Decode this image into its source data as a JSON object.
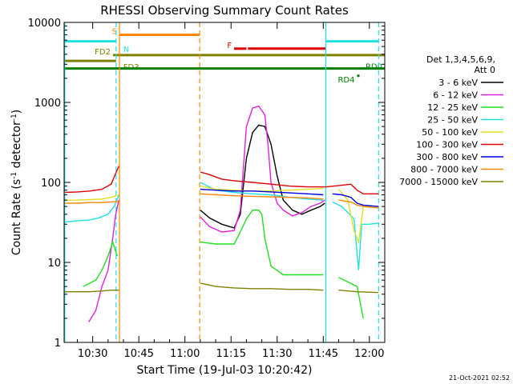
{
  "chart_data": {
    "type": "line",
    "title": "RHESSI Observing Summary Count Rates",
    "xlabel": "Start Time (19-Jul-03 10:20:42)",
    "ylabel_main": "Count Rate (s",
    "ylabel_sup": "-1",
    "ylabel_mid": " detector",
    "ylabel_sup2": "-1",
    "ylabel_end": ")",
    "timestamp": "21-Oct-2021 02:52",
    "x_range_min": [
      620.7,
      725
    ],
    "y_range": [
      1,
      10000
    ],
    "y_scale": "log",
    "x_ticks": [
      {
        "label": "10:30",
        "value": 630
      },
      {
        "label": "10:45",
        "value": 645
      },
      {
        "label": "11:00",
        "value": 660
      },
      {
        "label": "11:15",
        "value": 675
      },
      {
        "label": "11:30",
        "value": 690
      },
      {
        "label": "11:45",
        "value": 705
      },
      {
        "label": "12:00",
        "value": 720
      }
    ],
    "y_ticks": [
      {
        "label": "1",
        "value": 1
      },
      {
        "label": "10",
        "value": 10
      },
      {
        "label": "100",
        "value": 100
      },
      {
        "label": "1000",
        "value": 1000
      },
      {
        "label": "10000",
        "value": 10000
      }
    ],
    "legend": {
      "position": "right",
      "header": [
        "Det 1,3,4,5,6,9,",
        "Att 0"
      ],
      "entries": [
        {
          "label": "3 - 6 keV",
          "color": "#000000"
        },
        {
          "label": "6 - 12 keV",
          "color": "#e020e0"
        },
        {
          "label": "12 - 25 keV",
          "color": "#20e020"
        },
        {
          "label": "25 - 50 keV",
          "color": "#20e0e0"
        },
        {
          "label": "50 - 100 keV",
          "color": "#e0e020"
        },
        {
          "label": "100 - 300 keV",
          "color": "#e00000"
        },
        {
          "label": "300 - 800 keV",
          "color": "#0000e0"
        },
        {
          "label": "800 - 7000 keV",
          "color": "#ff8800"
        },
        {
          "label": "7000 - 15000 keV",
          "color": "#808000"
        }
      ]
    },
    "gap_minutes": [
      [
        638.8,
        664.8
      ],
      [
        705.8,
        706.5
      ]
    ],
    "series": [
      {
        "name": "3 - 6 keV",
        "color": "#000000",
        "points": [
          [
            665,
            45
          ],
          [
            668,
            36
          ],
          [
            672,
            30
          ],
          [
            676,
            27
          ],
          [
            678,
            40
          ],
          [
            680,
            200
          ],
          [
            682,
            420
          ],
          [
            684,
            520
          ],
          [
            686,
            500
          ],
          [
            688,
            300
          ],
          [
            690,
            120
          ],
          [
            692,
            60
          ],
          [
            695,
            45
          ],
          [
            698,
            40
          ],
          [
            701,
            45
          ],
          [
            704,
            50
          ],
          [
            705.5,
            55
          ]
        ]
      },
      {
        "name": "6 - 12 keV",
        "color": "#e020e0",
        "points": [
          [
            628.7,
            1.8
          ],
          [
            631,
            2.5
          ],
          [
            633,
            5
          ],
          [
            635,
            8
          ],
          [
            636.5,
            20
          ],
          [
            637.5,
            40
          ],
          [
            638.5,
            60
          ],
          [
            665,
            37
          ],
          [
            668,
            28
          ],
          [
            672,
            24
          ],
          [
            676,
            25
          ],
          [
            678,
            45
          ],
          [
            680,
            500
          ],
          [
            682,
            850
          ],
          [
            684,
            900
          ],
          [
            686,
            700
          ],
          [
            687,
            300
          ],
          [
            688,
            100
          ],
          [
            690,
            55
          ],
          [
            692,
            45
          ],
          [
            695,
            38
          ],
          [
            698,
            42
          ],
          [
            701,
            50
          ],
          [
            704,
            55
          ],
          [
            705.5,
            60
          ]
        ]
      },
      {
        "name": "12 - 25 keV",
        "color": "#20e020",
        "points": [
          [
            627,
            5
          ],
          [
            629,
            5.5
          ],
          [
            631,
            6
          ],
          [
            633,
            8
          ],
          [
            635,
            12
          ],
          [
            636.5,
            18
          ],
          [
            638,
            12
          ],
          [
            665,
            18
          ],
          [
            670,
            17
          ],
          [
            676,
            17
          ],
          [
            678,
            24
          ],
          [
            680,
            35
          ],
          [
            682,
            45
          ],
          [
            684,
            45
          ],
          [
            685,
            40
          ],
          [
            686,
            20
          ],
          [
            688,
            9
          ],
          [
            692,
            7
          ],
          [
            700,
            7
          ],
          [
            705,
            7
          ],
          [
            710,
            6.5
          ],
          [
            716,
            5
          ],
          [
            718,
            2
          ]
        ]
      },
      {
        "name": "25 - 50 keV",
        "color": "#20e0e0",
        "points": [
          [
            621,
            32
          ],
          [
            625,
            33
          ],
          [
            629,
            34
          ],
          [
            632,
            36
          ],
          [
            635,
            40
          ],
          [
            637,
            50
          ],
          [
            638.5,
            70
          ],
          [
            665,
            100
          ],
          [
            670,
            80
          ],
          [
            676,
            75
          ],
          [
            682,
            72
          ],
          [
            688,
            70
          ],
          [
            694,
            65
          ],
          [
            700,
            62
          ],
          [
            705,
            60
          ],
          [
            708,
            57
          ],
          [
            711,
            50
          ],
          [
            713,
            42
          ],
          [
            715,
            35
          ],
          [
            716.5,
            8
          ],
          [
            717.5,
            30
          ],
          [
            720,
            30
          ],
          [
            723,
            31
          ]
        ]
      },
      {
        "name": "50 - 100 keV",
        "color": "#e0e020",
        "points": [
          [
            621,
            60
          ],
          [
            625,
            60
          ],
          [
            629,
            61
          ],
          [
            633,
            62
          ],
          [
            636,
            65
          ],
          [
            638.5,
            70
          ],
          [
            665,
            90
          ],
          [
            670,
            82
          ],
          [
            676,
            80
          ],
          [
            682,
            78
          ],
          [
            688,
            78
          ],
          [
            694,
            80
          ],
          [
            700,
            82
          ],
          [
            705,
            84
          ],
          [
            710,
            82
          ],
          [
            713,
            60
          ],
          [
            715,
            25
          ],
          [
            716.5,
            18
          ],
          [
            718,
            50
          ],
          [
            723,
            50
          ]
        ]
      },
      {
        "name": "100 - 300 keV",
        "color": "#e00000",
        "points": [
          [
            621,
            75
          ],
          [
            625,
            76
          ],
          [
            629,
            78
          ],
          [
            633,
            82
          ],
          [
            636,
            95
          ],
          [
            637.5,
            130
          ],
          [
            638.5,
            160
          ],
          [
            665,
            135
          ],
          [
            668,
            125
          ],
          [
            672,
            110
          ],
          [
            676,
            105
          ],
          [
            682,
            100
          ],
          [
            688,
            95
          ],
          [
            694,
            90
          ],
          [
            700,
            88
          ],
          [
            706,
            88
          ],
          [
            711,
            92
          ],
          [
            714,
            95
          ],
          [
            716,
            80
          ],
          [
            718,
            72
          ],
          [
            723,
            72
          ]
        ]
      },
      {
        "name": "300 - 800 keV",
        "color": "#0000e0",
        "points": [
          [
            665,
            82
          ],
          [
            670,
            80
          ],
          [
            676,
            78
          ],
          [
            682,
            78
          ],
          [
            688,
            76
          ],
          [
            694,
            74
          ],
          [
            700,
            72
          ],
          [
            705,
            70
          ],
          [
            708,
            72
          ],
          [
            711,
            70
          ],
          [
            714,
            65
          ],
          [
            716,
            55
          ],
          [
            718,
            52
          ],
          [
            723,
            50
          ]
        ]
      },
      {
        "name": "800 - 7000 keV",
        "color": "#ff8800",
        "points": [
          [
            621,
            55
          ],
          [
            625,
            55
          ],
          [
            629,
            56
          ],
          [
            633,
            56
          ],
          [
            636,
            57
          ],
          [
            638.5,
            58
          ],
          [
            665,
            72
          ],
          [
            670,
            70
          ],
          [
            676,
            68
          ],
          [
            682,
            67
          ],
          [
            688,
            66
          ],
          [
            694,
            65
          ],
          [
            700,
            64
          ],
          [
            705,
            62
          ],
          [
            710,
            60
          ],
          [
            714,
            57
          ],
          [
            716,
            52
          ],
          [
            718,
            50
          ],
          [
            723,
            48
          ]
        ]
      },
      {
        "name": "7000 - 15000 keV",
        "color": "#808000",
        "points": [
          [
            621,
            4.3
          ],
          [
            625,
            4.3
          ],
          [
            629,
            4.3
          ],
          [
            633,
            4.4
          ],
          [
            636,
            4.5
          ],
          [
            638.5,
            4.5
          ],
          [
            665,
            5.5
          ],
          [
            670,
            5
          ],
          [
            676,
            4.8
          ],
          [
            682,
            4.7
          ],
          [
            688,
            4.7
          ],
          [
            694,
            4.6
          ],
          [
            700,
            4.6
          ],
          [
            705,
            4.5
          ],
          [
            710,
            4.5
          ],
          [
            716,
            4.3
          ],
          [
            723,
            4.2
          ]
        ]
      }
    ],
    "time_markers": [
      {
        "minute": 620.9,
        "color": "#20e0e0",
        "style": "solid"
      },
      {
        "minute": 637.6,
        "color": "#20e0e0",
        "style": "dashed"
      },
      {
        "minute": 638.7,
        "color": "#ff8800",
        "style": "solid"
      },
      {
        "minute": 664.8,
        "color": "#ff8800",
        "style": "dashed"
      },
      {
        "minute": 705.8,
        "color": "#20e0e0",
        "style": "solid"
      },
      {
        "minute": 723.0,
        "color": "#20e0e0",
        "style": "dashed"
      }
    ],
    "flag_bars": [
      {
        "label": "S",
        "color": "#ff8800",
        "y": 7000,
        "x_start": 638.7,
        "x_end": 664.8,
        "label_side": "left"
      },
      {
        "label": "",
        "color": "#20e0e0",
        "y": 5800,
        "x_start": 620.9,
        "x_end": 637.6
      },
      {
        "label": "",
        "color": "#20e0e0",
        "y": 5800,
        "x_start": 705.8,
        "x_end": 723.0
      },
      {
        "label": "N",
        "color": "#20e0e0",
        "y": 5500,
        "x_start": 638.9,
        "x_end": 638.9,
        "label_side": "right"
      },
      {
        "label": "F",
        "color": "#e00000",
        "y": 4700,
        "x_start": 676.0,
        "x_end": 680.0,
        "label_side": "left"
      },
      {
        "label": "",
        "color": "#e00000",
        "y": 4700,
        "x_start": 680.5,
        "x_end": 705.8
      },
      {
        "label": "FD2",
        "color": "#808000",
        "y": 3900,
        "x_start": 636.6,
        "x_end": 725,
        "label_side": "left"
      },
      {
        "label": "",
        "color": "#808000",
        "y": 3300,
        "x_start": 620.9,
        "x_end": 637.6
      },
      {
        "label": "FD3",
        "color": "#808000",
        "y": 3300,
        "x_start": 638.9,
        "x_end": 638.9,
        "label_side": "right"
      },
      {
        "label": "RD0",
        "color": "#008000",
        "y": 2650,
        "x_start": 620.9,
        "x_end": 725,
        "label_side": "right-end"
      },
      {
        "label": "RD4",
        "color": "#008000",
        "y": 2150,
        "x_start": 716.0,
        "x_end": 716.8,
        "label_side": "left"
      }
    ]
  }
}
